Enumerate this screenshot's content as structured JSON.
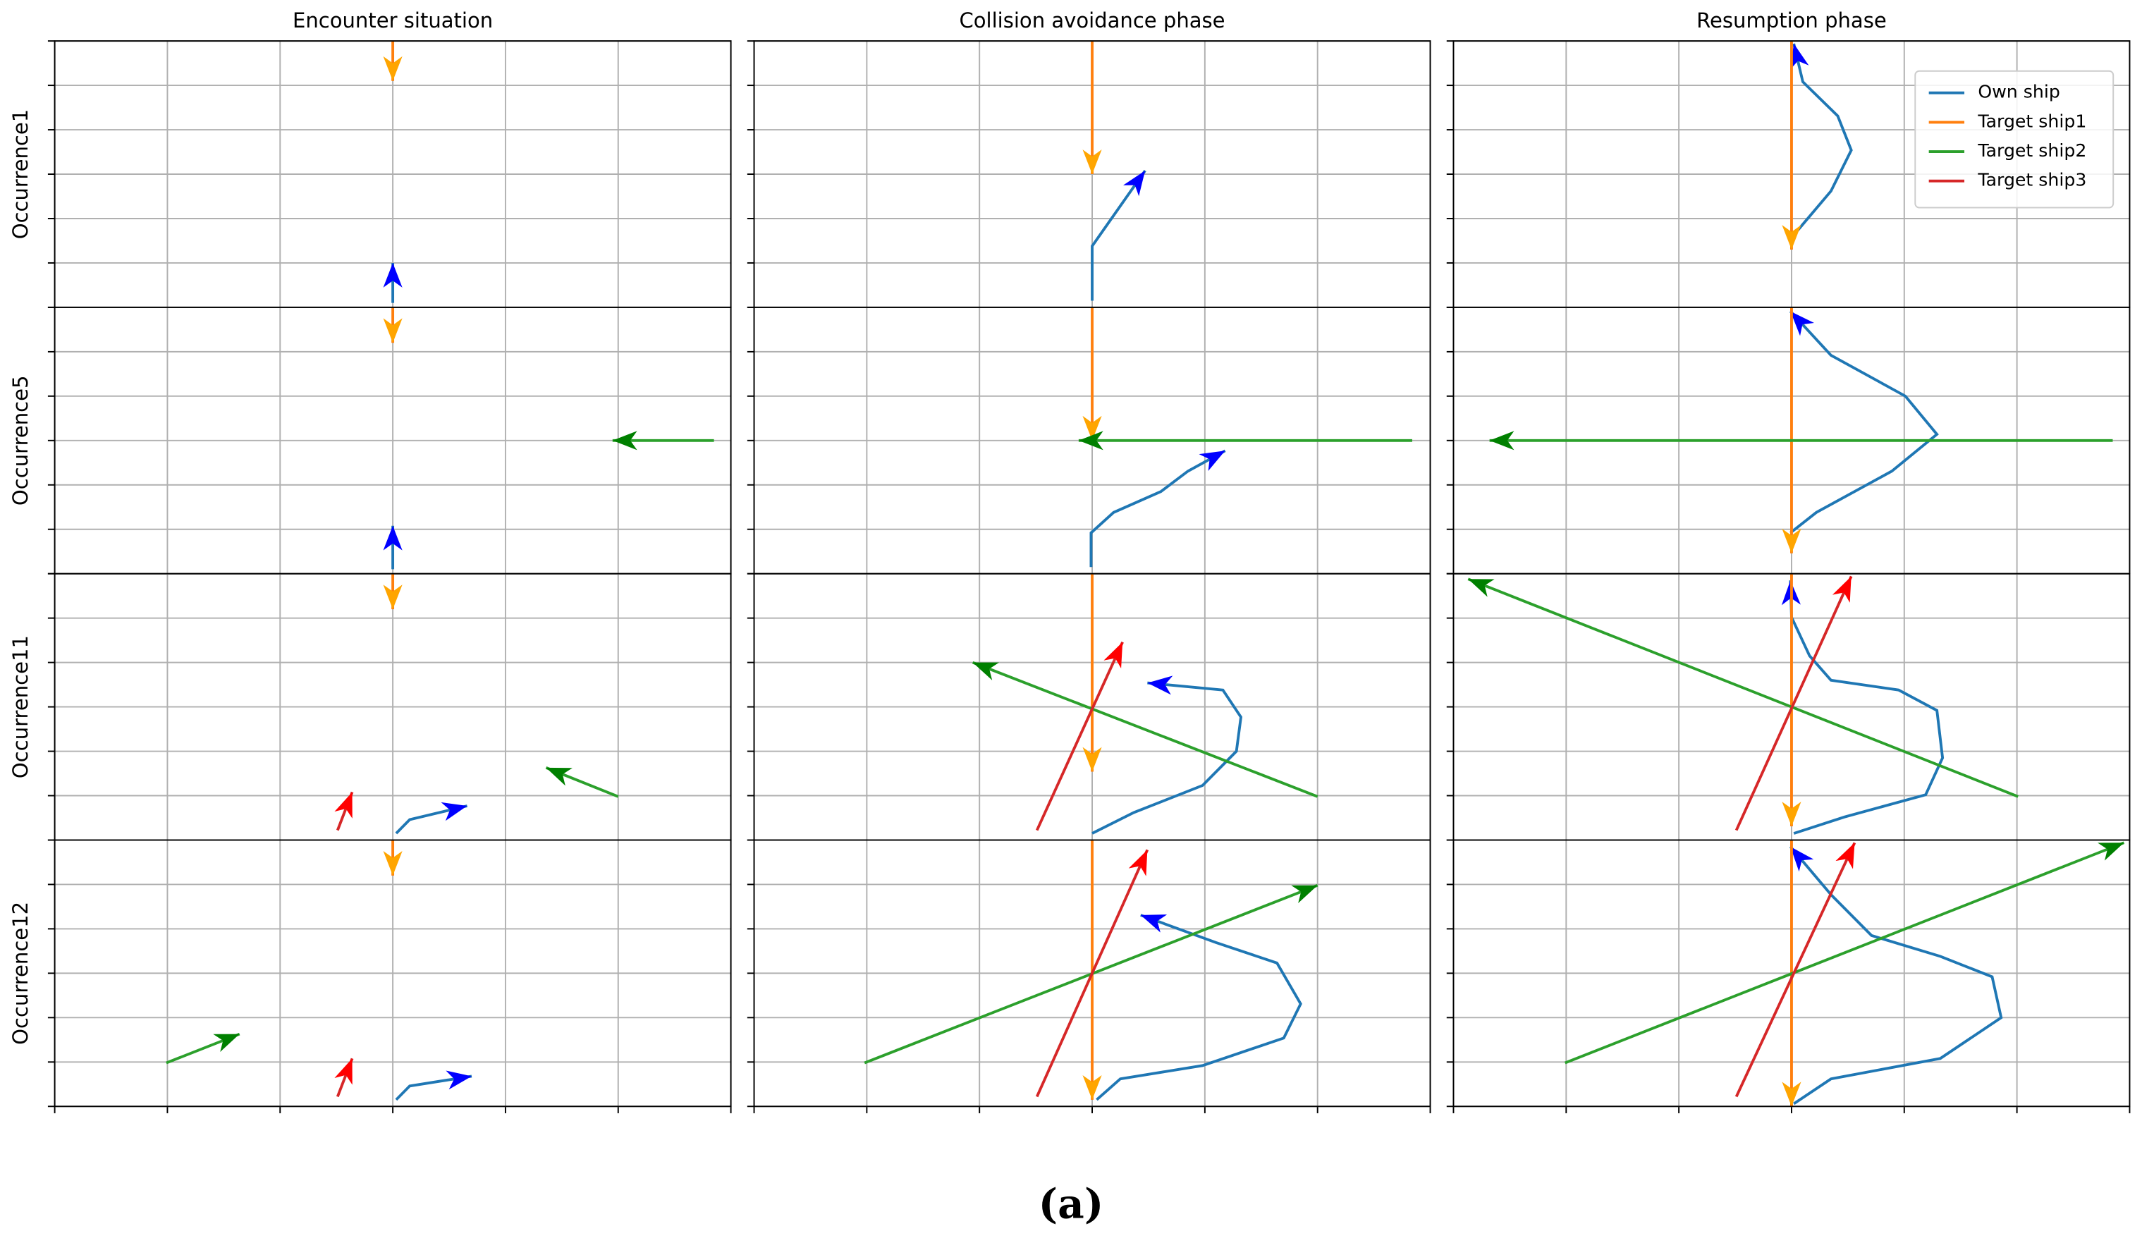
{
  "chart_data": [
    {
      "type": "line",
      "title": "Encounter situation",
      "ylabel": "Occurrence1",
      "xlim": [
        0,
        6
      ],
      "ylim": [
        0,
        6
      ],
      "xticks": [
        0,
        1,
        2,
        3,
        4,
        5,
        6
      ],
      "yticks": [
        0,
        1,
        2,
        3,
        4,
        5,
        6
      ],
      "grid": true,
      "series": [
        {
          "color": "#1f77b4",
          "marker_color": "#0000ff",
          "x": [
            3,
            3
          ],
          "values": [
            0.1,
            1.0
          ]
        },
        {
          "color": "#ff7f0e",
          "marker_color": "#ffa500",
          "x": [
            3,
            3
          ],
          "values": [
            6,
            5.1
          ]
        }
      ]
    },
    {
      "type": "line",
      "title": "Collision avoidance phase",
      "xlim": [
        0,
        6
      ],
      "ylim": [
        0,
        6
      ],
      "xticks": [
        0,
        1,
        2,
        3,
        4,
        5,
        6
      ],
      "yticks": [
        0,
        1,
        2,
        3,
        4,
        5,
        6
      ],
      "grid": true,
      "series": [
        {
          "color": "#1f77b4",
          "marker_color": "#0000ff",
          "x": [
            3,
            3,
            3.13,
            3.47
          ],
          "values": [
            0.15,
            1.38,
            1.85,
            3.08
          ]
        },
        {
          "color": "#ff7f0e",
          "marker_color": "#ffa500",
          "x": [
            3,
            3
          ],
          "values": [
            6,
            3.0
          ]
        }
      ]
    },
    {
      "type": "line",
      "title": "Resumption phase",
      "xlim": [
        0,
        6
      ],
      "ylim": [
        0,
        6
      ],
      "xticks": [
        0,
        1,
        2,
        3,
        4,
        5,
        6
      ],
      "yticks": [
        0,
        1,
        2,
        3,
        4,
        5,
        6
      ],
      "grid": true,
      "legend": [
        {
          "name": "Own ship",
          "color": "#1f77b4"
        },
        {
          "name": "Target ship1",
          "color": "#ff7f0e"
        },
        {
          "name": "Target ship2",
          "color": "#2ca02c"
        },
        {
          "name": "Target ship3",
          "color": "#d62728"
        }
      ],
      "legend_loc": "upper right",
      "series": [
        {
          "color": "#1f77b4",
          "marker_color": "#0000ff",
          "x": [
            2.99,
            3.35,
            3.53,
            3.41,
            3.1,
            3.02
          ],
          "values": [
            1.54,
            2.62,
            3.54,
            4.31,
            5.08,
            5.94
          ]
        },
        {
          "color": "#ff7f0e",
          "marker_color": "#ffa500",
          "x": [
            3,
            3
          ],
          "values": [
            6,
            1.3
          ]
        }
      ]
    },
    {
      "type": "line",
      "ylabel": "Occurrence5",
      "xlim": [
        0,
        6
      ],
      "ylim": [
        0,
        6
      ],
      "xticks": [
        0,
        1,
        2,
        3,
        4,
        5,
        6
      ],
      "yticks": [
        0,
        1,
        2,
        3,
        4,
        5,
        6
      ],
      "grid": true,
      "series": [
        {
          "color": "#1f77b4",
          "marker_color": "#0000ff",
          "x": [
            3,
            3
          ],
          "values": [
            0.1,
            1.08
          ]
        },
        {
          "color": "#ff7f0e",
          "marker_color": "#ffa500",
          "x": [
            3,
            3
          ],
          "values": [
            6,
            5.2
          ]
        },
        {
          "color": "#2ca02c",
          "marker_color": "#008000",
          "x": [
            5.85,
            4.95
          ],
          "values": [
            3,
            3
          ]
        }
      ]
    },
    {
      "type": "line",
      "xlim": [
        0,
        6
      ],
      "ylim": [
        0,
        6
      ],
      "xticks": [
        0,
        1,
        2,
        3,
        4,
        5,
        6
      ],
      "yticks": [
        0,
        1,
        2,
        3,
        4,
        5,
        6
      ],
      "grid": true,
      "series": [
        {
          "color": "#1f77b4",
          "marker_color": "#0000ff",
          "x": [
            2.99,
            2.99,
            3.19,
            3.61,
            3.85,
            4.18
          ],
          "values": [
            0.15,
            0.92,
            1.38,
            1.85,
            2.31,
            2.77
          ]
        },
        {
          "color": "#ff7f0e",
          "marker_color": "#ffa500",
          "x": [
            3,
            3
          ],
          "values": [
            6,
            3
          ]
        },
        {
          "color": "#2ca02c",
          "marker_color": "#008000",
          "x": [
            5.84,
            2.88
          ],
          "values": [
            3,
            3
          ]
        }
      ]
    },
    {
      "type": "line",
      "xlim": [
        0,
        6
      ],
      "ylim": [
        0,
        6
      ],
      "xticks": [
        0,
        1,
        2,
        3,
        4,
        5,
        6
      ],
      "yticks": [
        0,
        1,
        2,
        3,
        4,
        5,
        6
      ],
      "grid": true,
      "series": [
        {
          "color": "#1f77b4",
          "marker_color": "#0000ff",
          "x": [
            2.99,
            3.22,
            3.89,
            4.29,
            4.01,
            3.35,
            2.99
          ],
          "values": [
            0.92,
            1.38,
            2.31,
            3.14,
            4.0,
            4.92,
            5.91
          ]
        },
        {
          "color": "#ff7f0e",
          "marker_color": "#ffa500",
          "x": [
            3,
            3
          ],
          "values": [
            6,
            0.46
          ]
        },
        {
          "color": "#2ca02c",
          "marker_color": "#008000",
          "x": [
            5.85,
            0.32
          ],
          "values": [
            3,
            3
          ]
        }
      ]
    },
    {
      "type": "line",
      "ylabel": "Occurrence11",
      "xlim": [
        0,
        6
      ],
      "ylim": [
        0,
        6
      ],
      "xticks": [
        0,
        1,
        2,
        3,
        4,
        5,
        6
      ],
      "yticks": [
        0,
        1,
        2,
        3,
        4,
        5,
        6
      ],
      "grid": true,
      "series": [
        {
          "color": "#1f77b4",
          "marker_color": "#0000ff",
          "x": [
            3.03,
            3.15,
            3.66
          ],
          "values": [
            0.15,
            0.46,
            0.77
          ]
        },
        {
          "color": "#ff7f0e",
          "marker_color": "#ffa500",
          "x": [
            3,
            3
          ],
          "values": [
            6,
            5.2
          ]
        },
        {
          "color": "#2ca02c",
          "marker_color": "#008000",
          "x": [
            5.0,
            4.36
          ],
          "values": [
            0.98,
            1.63
          ]
        },
        {
          "color": "#d62728",
          "marker_color": "#ff0000",
          "x": [
            2.51,
            2.64
          ],
          "values": [
            0.22,
            1.08
          ]
        }
      ]
    },
    {
      "type": "line",
      "xlim": [
        0,
        6
      ],
      "ylim": [
        0,
        6
      ],
      "xticks": [
        0,
        1,
        2,
        3,
        4,
        5,
        6
      ],
      "yticks": [
        0,
        1,
        2,
        3,
        4,
        5,
        6
      ],
      "grid": true,
      "series": [
        {
          "color": "#1f77b4",
          "marker_color": "#0000ff",
          "x": [
            3.0,
            3.37,
            3.98,
            4.28,
            4.32,
            4.16,
            3.49
          ],
          "values": [
            0.15,
            0.62,
            1.23,
            2.0,
            2.77,
            3.38,
            3.54
          ]
        },
        {
          "color": "#ff7f0e",
          "marker_color": "#ffa500",
          "x": [
            3,
            3
          ],
          "values": [
            6,
            1.54
          ]
        },
        {
          "color": "#2ca02c",
          "marker_color": "#008000",
          "x": [
            5.0,
            1.94
          ],
          "values": [
            0.98,
            4.0
          ]
        },
        {
          "color": "#d62728",
          "marker_color": "#ff0000",
          "x": [
            2.51,
            3.27
          ],
          "values": [
            0.22,
            4.46
          ]
        }
      ]
    },
    {
      "type": "line",
      "xlim": [
        0,
        6
      ],
      "ylim": [
        0,
        6
      ],
      "xticks": [
        0,
        1,
        2,
        3,
        4,
        5,
        6
      ],
      "yticks": [
        0,
        1,
        2,
        3,
        4,
        5,
        6
      ],
      "grid": true,
      "series": [
        {
          "color": "#1f77b4",
          "marker_color": "#0000ff",
          "x": [
            3.02,
            3.47,
            4.19,
            4.34,
            4.29,
            3.95,
            3.35,
            3.16,
            3.0,
            2.99
          ],
          "values": [
            0.15,
            0.52,
            1.02,
            1.85,
            2.92,
            3.38,
            3.6,
            4.15,
            5.02,
            5.85
          ]
        },
        {
          "color": "#ff7f0e",
          "marker_color": "#ffa500",
          "x": [
            3,
            3
          ],
          "values": [
            6,
            0.31
          ]
        },
        {
          "color": "#2ca02c",
          "marker_color": "#008000",
          "x": [
            5.01,
            0.13
          ],
          "values": [
            0.98,
            5.88
          ]
        },
        {
          "color": "#d62728",
          "marker_color": "#ff0000",
          "x": [
            2.51,
            3.53
          ],
          "values": [
            0.22,
            5.94
          ]
        }
      ]
    },
    {
      "type": "line",
      "ylabel": "Occurrence12",
      "xlim": [
        0,
        6
      ],
      "ylim": [
        0,
        6
      ],
      "xticks": [
        0,
        1,
        2,
        3,
        4,
        5,
        6
      ],
      "yticks": [
        0,
        1,
        2,
        3,
        4,
        5,
        6
      ],
      "grid": true,
      "series": [
        {
          "color": "#1f77b4",
          "marker_color": "#0000ff",
          "x": [
            3.03,
            3.15,
            3.7
          ],
          "values": [
            0.15,
            0.46,
            0.68
          ]
        },
        {
          "color": "#ff7f0e",
          "marker_color": "#ffa500",
          "x": [
            3,
            3
          ],
          "values": [
            6,
            5.2
          ]
        },
        {
          "color": "#2ca02c",
          "marker_color": "#008000",
          "x": [
            0.99,
            1.64
          ],
          "values": [
            0.98,
            1.63
          ]
        },
        {
          "color": "#d62728",
          "marker_color": "#ff0000",
          "x": [
            2.51,
            2.64
          ],
          "values": [
            0.22,
            1.08
          ]
        }
      ]
    },
    {
      "type": "line",
      "xlim": [
        0,
        6
      ],
      "ylim": [
        0,
        6
      ],
      "xticks": [
        0,
        1,
        2,
        3,
        4,
        5,
        6
      ],
      "yticks": [
        0,
        1,
        2,
        3,
        4,
        5,
        6
      ],
      "grid": true,
      "series": [
        {
          "color": "#1f77b4",
          "marker_color": "#0000ff",
          "x": [
            3.04,
            3.25,
            3.98,
            4.7,
            4.85,
            4.64,
            4.1,
            3.43
          ],
          "values": [
            0.15,
            0.62,
            0.92,
            1.54,
            2.31,
            3.23,
            3.69,
            4.31
          ]
        },
        {
          "color": "#ff7f0e",
          "marker_color": "#ffa500",
          "x": [
            3,
            3
          ],
          "values": [
            6,
            0.15
          ]
        },
        {
          "color": "#2ca02c",
          "marker_color": "#008000",
          "x": [
            0.98,
            5.0
          ],
          "values": [
            0.98,
            4.98
          ]
        },
        {
          "color": "#d62728",
          "marker_color": "#ff0000",
          "x": [
            2.51,
            3.49
          ],
          "values": [
            0.22,
            5.78
          ]
        }
      ]
    },
    {
      "type": "line",
      "xlim": [
        0,
        6
      ],
      "ylim": [
        0,
        6
      ],
      "xticks": [
        0,
        1,
        2,
        3,
        4,
        5,
        6
      ],
      "yticks": [
        0,
        1,
        2,
        3,
        4,
        5,
        6
      ],
      "grid": true,
      "series": [
        {
          "color": "#1f77b4",
          "marker_color": "#0000ff",
          "x": [
            3.02,
            3.35,
            4.32,
            4.86,
            4.78,
            4.32,
            3.71,
            3.35,
            2.99
          ],
          "values": [
            0.06,
            0.62,
            1.08,
            2.0,
            2.92,
            3.38,
            3.85,
            4.77,
            5.85
          ]
        },
        {
          "color": "#ff7f0e",
          "marker_color": "#ffa500",
          "x": [
            3,
            3
          ],
          "values": [
            6,
            0.0
          ]
        },
        {
          "color": "#2ca02c",
          "marker_color": "#008000",
          "x": [
            0.99,
            5.95
          ],
          "values": [
            0.98,
            5.94
          ]
        },
        {
          "color": "#d62728",
          "marker_color": "#ff0000",
          "x": [
            2.51,
            3.56
          ],
          "values": [
            0.22,
            5.94
          ]
        }
      ]
    }
  ],
  "caption": "(a)"
}
